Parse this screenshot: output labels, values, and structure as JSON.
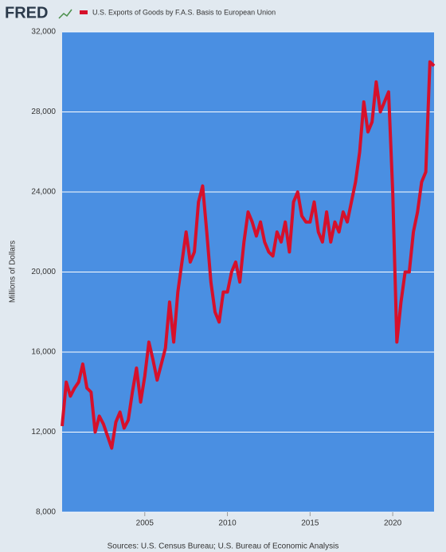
{
  "brand": "FRED",
  "chart_data": {
    "type": "line",
    "title": "U.S. Exports of Goods by F.A.S. Basis to European Union",
    "y_label": "Millions of Dollars",
    "source": "Sources: U.S. Census Bureau; U.S. Bureau of Economic Analysis",
    "xlim": [
      2000,
      2022.5
    ],
    "xticks": [
      2005,
      2010,
      2015,
      2020
    ],
    "ylim": [
      8000,
      32000
    ],
    "yticks": [
      {
        "value": 8000,
        "label": "8,000"
      },
      {
        "value": 12000,
        "label": "12,000"
      },
      {
        "value": 16000,
        "label": "16,000"
      },
      {
        "value": 20000,
        "label": "20,000"
      },
      {
        "value": 24000,
        "label": "24,000"
      },
      {
        "value": 28000,
        "label": "28,000"
      },
      {
        "value": 32000,
        "label": "32,000"
      }
    ],
    "grid": true,
    "plot_color": "#4a8fe2",
    "x": [
      2000,
      2000.25,
      2000.5,
      2000.75,
      2001,
      2001.25,
      2001.5,
      2001.75,
      2002,
      2002.25,
      2002.5,
      2002.75,
      2003,
      2003.25,
      2003.5,
      2003.75,
      2004,
      2004.25,
      2004.5,
      2004.75,
      2005,
      2005.25,
      2005.5,
      2005.75,
      2006,
      2006.25,
      2006.5,
      2006.75,
      2007,
      2007.25,
      2007.5,
      2007.75,
      2008,
      2008.25,
      2008.5,
      2008.75,
      2009,
      2009.25,
      2009.5,
      2009.75,
      2010,
      2010.25,
      2010.5,
      2010.75,
      2011,
      2011.25,
      2011.5,
      2011.75,
      2012,
      2012.25,
      2012.5,
      2012.75,
      2013,
      2013.25,
      2013.5,
      2013.75,
      2014,
      2014.25,
      2014.5,
      2014.75,
      2015,
      2015.25,
      2015.5,
      2015.75,
      2016,
      2016.25,
      2016.5,
      2016.75,
      2017,
      2017.25,
      2017.5,
      2017.75,
      2018,
      2018.25,
      2018.5,
      2018.75,
      2019,
      2019.25,
      2019.5,
      2019.75,
      2020,
      2020.25,
      2020.5,
      2020.75,
      2021,
      2021.25,
      2021.5,
      2021.75,
      2022,
      2022.25,
      2022.5
    ],
    "series": [
      {
        "name": "U.S. Exports of Goods by F.A.S. Basis to European Union",
        "color": "#d6102b",
        "values": [
          12300,
          14500,
          13800,
          14200,
          14500,
          15400,
          14200,
          14000,
          12000,
          12800,
          12400,
          11800,
          11200,
          12500,
          13000,
          12200,
          12600,
          14000,
          15200,
          13500,
          14800,
          16500,
          15600,
          14600,
          15400,
          16200,
          18500,
          16500,
          19000,
          20500,
          22000,
          20500,
          21000,
          23500,
          24300,
          22000,
          19500,
          18000,
          17500,
          19000,
          19000,
          20000,
          20500,
          19500,
          21500,
          23000,
          22500,
          21800,
          22500,
          21500,
          21000,
          20800,
          22000,
          21500,
          22500,
          21000,
          23500,
          24000,
          22800,
          22500,
          22500,
          23500,
          22000,
          21500,
          23000,
          21500,
          22500,
          22000,
          23000,
          22500,
          23500,
          24500,
          26000,
          28500,
          27000,
          27500,
          29500,
          28000,
          28500,
          29000,
          24000,
          16500,
          18500,
          20000,
          20000,
          22000,
          23000,
          24500,
          25000,
          30500,
          30300
        ]
      }
    ]
  }
}
